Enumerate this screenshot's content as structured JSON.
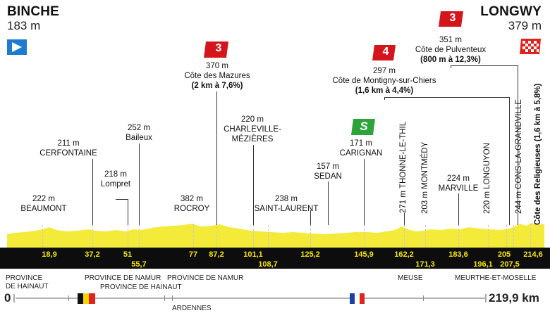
{
  "start": {
    "city": "BINCHE",
    "altitude": "183 m",
    "km": "0"
  },
  "finish": {
    "city": "LONGWY",
    "altitude": "379 m",
    "km": "219,9 km"
  },
  "climbs": {
    "mazures": {
      "category": "3",
      "altitude": "370 m",
      "name": "Côte des Mazures",
      "detail": "(2 km à 7,6%)"
    },
    "montigny": {
      "category": "4",
      "altitude": "297 m",
      "name": "Côte de Montigny-sur-Chiers",
      "detail": "(1,6 km à 4,4%)"
    },
    "pulventeux": {
      "category": "3",
      "altitude": "351 m",
      "name": "Côte de Pulventeux",
      "detail": "(800 m à 12,3%)"
    },
    "religieuses": {
      "label": "Côte des Religieuses (1,6 km à 5,8%)"
    }
  },
  "sprint": {
    "label": "S"
  },
  "places": {
    "beaumont": {
      "alt": "222 m",
      "name": "BEAUMONT"
    },
    "cerfontaine": {
      "alt": "211 m",
      "name": "CERFONTAINE"
    },
    "lompret": {
      "alt": "218 m",
      "name": "Lompret"
    },
    "baileux": {
      "alt": "252 m",
      "name": "Baileux"
    },
    "rocroy": {
      "alt": "382 m",
      "name": "ROCROY"
    },
    "charleville": {
      "alt": "220 m",
      "name1": "CHARLEVILLE-",
      "name2": "MÉZIÈRES"
    },
    "saintlaurent": {
      "alt": "238 m",
      "name": "SAINT-LAURENT"
    },
    "sedan": {
      "alt": "157 m",
      "name": "SEDAN"
    },
    "carignan": {
      "alt": "171 m",
      "name": "CARIGNAN"
    },
    "thonne": "271 m THONNE-LE-THIL",
    "montmedy": "203 m MONTMÉDY",
    "marville": {
      "alt": "224 m",
      "name": "MARVILLE"
    },
    "longuyon": "220 m LONGUYON",
    "cons": "244 m CONS-LA-GRANDVILLE"
  },
  "km_marks": {
    "k1": "18,9",
    "k2": "37,2",
    "k3": "51",
    "k4": "55,7",
    "k5": "77",
    "k6": "87,2",
    "k7": "101,1",
    "k8": "108,7",
    "k9": "125,2",
    "k10": "145,9",
    "k11": "162,2",
    "k12": "171,3",
    "k13": "183,6",
    "k14": "196,1",
    "k15": "205",
    "k16": "207,5",
    "k17": "214,6"
  },
  "regions": {
    "hainaut1a": "PROVINCE",
    "hainaut1b": "DE HAINAUT",
    "namur1": "PROVINCE DE NAMUR",
    "hainaut2": "PROVINCE DE HAINAUT",
    "namur2": "PROVINCE DE NAMUR",
    "ardennes": "ARDENNES",
    "meuse": "MEUSE",
    "mm": "MEURTHE-ET-MOSELLE"
  },
  "colors": {
    "profile": "#f4ea3a",
    "band": "#0d0d0d",
    "cat3": "#d4151b",
    "cat4": "#d4151b",
    "sprint": "#2ea33a",
    "start_flag": "#1f7bd1"
  }
}
